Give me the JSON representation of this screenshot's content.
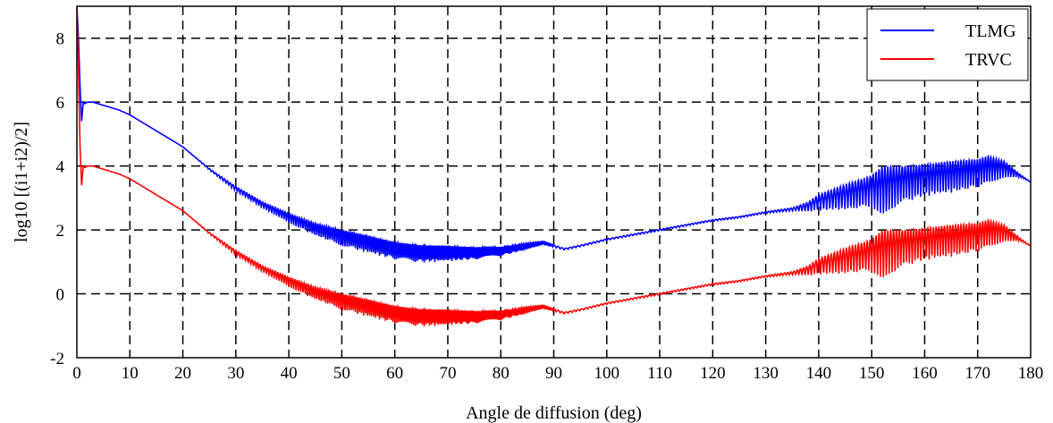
{
  "chart_data": {
    "type": "line",
    "title": "",
    "xlabel": "Angle de diffusion (deg)",
    "ylabel": "log10 [(i1+i2)/2]",
    "xlim": [
      0,
      180
    ],
    "ylim": [
      -2,
      9
    ],
    "xticks": [
      0,
      10,
      20,
      30,
      40,
      50,
      60,
      70,
      80,
      90,
      100,
      110,
      120,
      130,
      140,
      150,
      160,
      170,
      180
    ],
    "yticks": [
      -2,
      0,
      2,
      4,
      6,
      8
    ],
    "grid": true,
    "grid_style": "dashed",
    "legend_position": "top-right",
    "series": [
      {
        "name": "TLMG",
        "color": "#0000ff",
        "x": [
          0,
          0.3,
          0.6,
          0.9,
          1.2,
          1.5,
          2,
          3,
          5,
          8,
          10,
          12,
          15,
          20,
          25,
          30,
          35,
          40,
          45,
          50,
          55,
          60,
          65,
          70,
          75,
          80,
          85,
          88,
          92,
          95,
          100,
          105,
          110,
          115,
          120,
          125,
          130,
          135,
          138,
          140,
          145,
          150,
          152,
          155,
          160,
          165,
          170,
          172,
          175,
          178,
          180
        ],
        "y": [
          9.0,
          8.0,
          6.5,
          5.4,
          6.0,
          5.95,
          6.0,
          6.0,
          5.9,
          5.75,
          5.6,
          5.4,
          5.1,
          4.6,
          3.9,
          3.3,
          2.8,
          2.4,
          2.05,
          1.8,
          1.6,
          1.4,
          1.3,
          1.3,
          1.3,
          1.35,
          1.5,
          1.6,
          1.4,
          1.5,
          1.7,
          1.85,
          2.0,
          2.15,
          2.3,
          2.4,
          2.55,
          2.65,
          2.75,
          2.9,
          3.1,
          3.3,
          3.35,
          3.5,
          3.65,
          3.75,
          3.85,
          3.95,
          3.95,
          3.7,
          3.5
        ],
        "oscillation_amplitude": [
          0,
          0,
          0,
          0,
          0,
          0,
          0,
          0,
          0,
          0,
          0,
          0,
          0,
          0,
          0.05,
          0.15,
          0.2,
          0.3,
          0.4,
          0.5,
          0.55,
          0.55,
          0.55,
          0.5,
          0.4,
          0.3,
          0.2,
          0.1,
          0.05,
          0.05,
          0.05,
          0.05,
          0.05,
          0.05,
          0.05,
          0.05,
          0.05,
          0.1,
          0.3,
          0.5,
          0.8,
          1.0,
          1.6,
          1.2,
          1.0,
          1.0,
          0.9,
          0.9,
          0.5,
          0.1,
          0
        ]
      },
      {
        "name": "TRVC",
        "color": "#ff0000",
        "x": [
          0,
          0.3,
          0.6,
          0.9,
          1.2,
          1.5,
          2,
          3,
          5,
          8,
          10,
          12,
          15,
          20,
          25,
          30,
          35,
          40,
          45,
          50,
          55,
          60,
          65,
          70,
          75,
          80,
          85,
          88,
          92,
          95,
          100,
          105,
          110,
          115,
          120,
          125,
          130,
          135,
          138,
          140,
          145,
          150,
          152,
          155,
          160,
          165,
          170,
          172,
          175,
          178,
          180
        ],
        "y": [
          9.0,
          7.0,
          4.6,
          3.4,
          4.0,
          3.95,
          4.0,
          4.0,
          3.9,
          3.75,
          3.6,
          3.4,
          3.1,
          2.6,
          1.9,
          1.3,
          0.8,
          0.4,
          0.05,
          -0.2,
          -0.4,
          -0.6,
          -0.7,
          -0.7,
          -0.7,
          -0.65,
          -0.5,
          -0.4,
          -0.6,
          -0.5,
          -0.3,
          -0.15,
          0.0,
          0.15,
          0.3,
          0.4,
          0.55,
          0.65,
          0.75,
          0.9,
          1.1,
          1.3,
          1.35,
          1.5,
          1.65,
          1.75,
          1.85,
          1.95,
          1.95,
          1.7,
          1.5
        ],
        "oscillation_amplitude": [
          0,
          0,
          0,
          0,
          0,
          0,
          0,
          0,
          0,
          0,
          0,
          0,
          0,
          0,
          0.05,
          0.15,
          0.2,
          0.3,
          0.4,
          0.5,
          0.55,
          0.55,
          0.55,
          0.5,
          0.4,
          0.3,
          0.2,
          0.1,
          0.05,
          0.05,
          0.05,
          0.05,
          0.05,
          0.05,
          0.05,
          0.05,
          0.05,
          0.1,
          0.3,
          0.5,
          0.8,
          1.0,
          1.6,
          1.2,
          1.0,
          1.0,
          0.9,
          0.9,
          0.5,
          0.1,
          0
        ]
      }
    ]
  }
}
